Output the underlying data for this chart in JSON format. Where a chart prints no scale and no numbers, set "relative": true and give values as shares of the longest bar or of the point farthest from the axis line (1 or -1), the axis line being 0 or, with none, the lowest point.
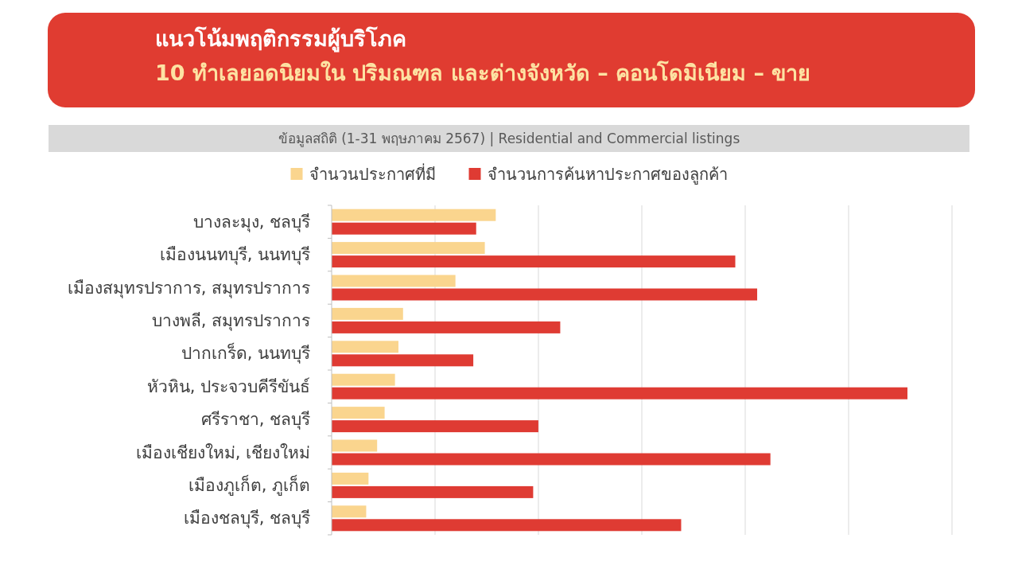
{
  "chart_data": {
    "type": "bar",
    "orientation": "horizontal",
    "relative": true,
    "title": "แนวโน้มพฤติกรรมผู้บริโภค",
    "subtitle": "10 ทำเลยอดนิยมใน ปริมณฑล และต่างจังหวัด – คอนโดมิเนียม – ขาย",
    "annotations": [
      "ข้อมูลสถิติ (1-31 พฤษภาคม 2567) | Residential and Commercial listings"
    ],
    "categories": [
      "บางละมุง, ชลบุรี",
      "เมืองนนทบุรี, นนทบุรี",
      "เมืองสมุทรปราการ, สมุทรปราการ",
      "บางพลี, สมุทรปราการ",
      "ปากเกร็ด, นนทบุรี",
      "หัวหิน, ประจวบคีรีขันธ์",
      "ศรีราชา, ชลบุรี",
      "เมืองเชียงใหม่, เชียงใหม่",
      "เมืองภูเก็ต, ภูเก็ต",
      "เมืองชลบุรี, ชลบุรี"
    ],
    "series": [
      {
        "name": "จำนวนประกาศที่มี",
        "color": "#fad58e",
        "values": [
          0.285,
          0.266,
          0.215,
          0.124,
          0.116,
          0.11,
          0.092,
          0.079,
          0.064,
          0.06
        ]
      },
      {
        "name": "จำนวนการค้นหาประกาศของลูกค้า",
        "color": "#df3b33",
        "values": [
          0.251,
          0.701,
          0.739,
          0.397,
          0.246,
          1,
          0.359,
          0.762,
          0.35,
          0.607
        ]
      }
    ],
    "grid": "x",
    "legend": "top"
  }
}
